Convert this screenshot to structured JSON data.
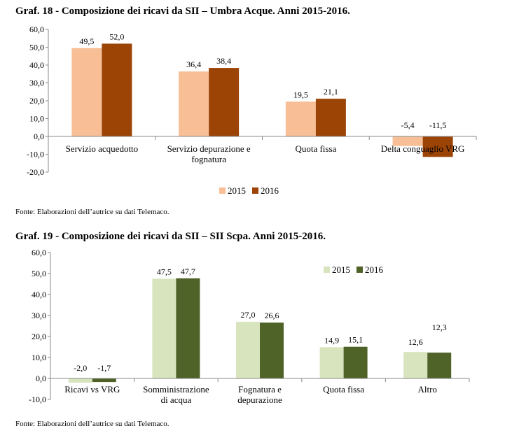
{
  "charts": [
    {
      "title": "Graf.  18 - Composizione dei ricavi da SII – Umbra Acque. Anni 2015-2016.",
      "source": "Fonte: Elaborazioni dell’autrice su dati Telemaco."
    },
    {
      "title": "Graf.  19 - Composizione dei ricavi da SII – SII Scpa. Anni 2015-2016.",
      "source": "Fonte: Elaborazioni dell’autrice su dati Telemaco."
    }
  ],
  "chart_data": [
    {
      "type": "bar",
      "categories": [
        [
          "Servizio acquedotto"
        ],
        [
          "Servizio depurazione e",
          "fognatura"
        ],
        [
          "Quota fissa"
        ],
        [
          "Delta conguaglio VRG"
        ]
      ],
      "series": [
        {
          "name": "2015",
          "values": [
            49.5,
            36.4,
            19.5,
            -5.4
          ],
          "labels": [
            "49,5",
            "36,4",
            "19,5",
            "-5,4"
          ],
          "color": "#f8be96"
        },
        {
          "name": "2016",
          "values": [
            52.0,
            38.4,
            21.1,
            -11.5
          ],
          "labels": [
            "52,0",
            "38,4",
            "21,1",
            "-11,5"
          ],
          "color": "#9c4406"
        }
      ],
      "ylim": [
        -20,
        60
      ],
      "yticks": [
        "-20,0",
        "-10,0",
        "0,0",
        "10,0",
        "20,0",
        "30,0",
        "40,0",
        "50,0",
        "60,0"
      ],
      "grid": false,
      "legend": "bottom-center"
    },
    {
      "type": "bar",
      "categories": [
        [
          "Ricavi vs VRG"
        ],
        [
          "Somministrazione",
          "di acqua"
        ],
        [
          "Fognatura e",
          "depurazione"
        ],
        [
          "Quota fissa"
        ],
        [
          "Altro"
        ]
      ],
      "series": [
        {
          "name": "2015",
          "values": [
            -2.0,
            47.5,
            27.0,
            14.9,
            12.6
          ],
          "labels": [
            "-2,0",
            "47,5",
            "27,0",
            "14,9",
            "12,6"
          ],
          "color": "#d7e4bd"
        },
        {
          "name": "2016",
          "values": [
            -1.7,
            47.7,
            26.6,
            15.1,
            12.3
          ],
          "labels": [
            "-1,7",
            "47,7",
            "26,6",
            "15,1",
            "12,3"
          ],
          "color": "#4f6228"
        }
      ],
      "ylim": [
        -10,
        60
      ],
      "yticks": [
        "-10,0",
        "0,0",
        "10,0",
        "20,0",
        "30,0",
        "40,0",
        "50,0",
        "60,0"
      ],
      "grid": false,
      "legend": "top-right"
    }
  ]
}
